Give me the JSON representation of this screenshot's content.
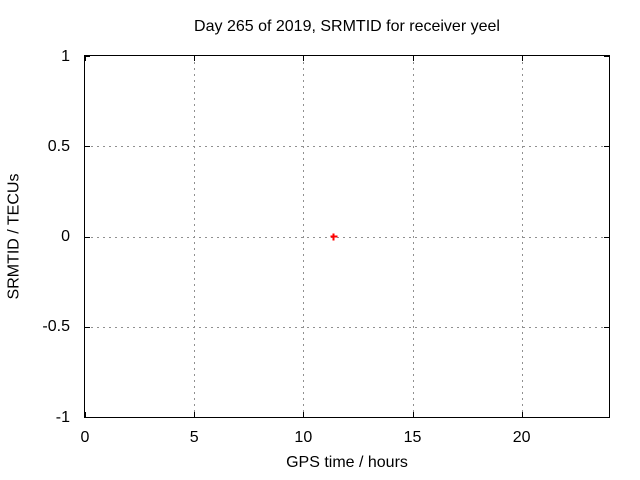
{
  "chart_data": {
    "type": "scatter",
    "title": "Day 265 of 2019, SRMTID for receiver yeel",
    "xlabel": "GPS time / hours",
    "ylabel": "SRMTID / TECUs",
    "xlim": [
      0,
      24
    ],
    "ylim": [
      -1,
      1
    ],
    "xticks": {
      "values": [
        0,
        5,
        10,
        15,
        20
      ],
      "labels": [
        "0",
        "5",
        "10",
        "15",
        "20"
      ]
    },
    "yticks": {
      "values": [
        1,
        0.5,
        0,
        -0.5,
        -1
      ],
      "labels": [
        "1",
        "0.5",
        "0",
        "-0.5",
        "-1"
      ]
    },
    "grid": true,
    "legend": "none",
    "series": [
      {
        "name": "SRMTID",
        "marker": "plus",
        "color": "#ff0000",
        "points": [
          [
            11.4,
            0.0
          ]
        ]
      }
    ],
    "colors": {
      "background": "#ffffff",
      "border": "#000000",
      "grid": "#909090",
      "text": "#000000"
    }
  }
}
